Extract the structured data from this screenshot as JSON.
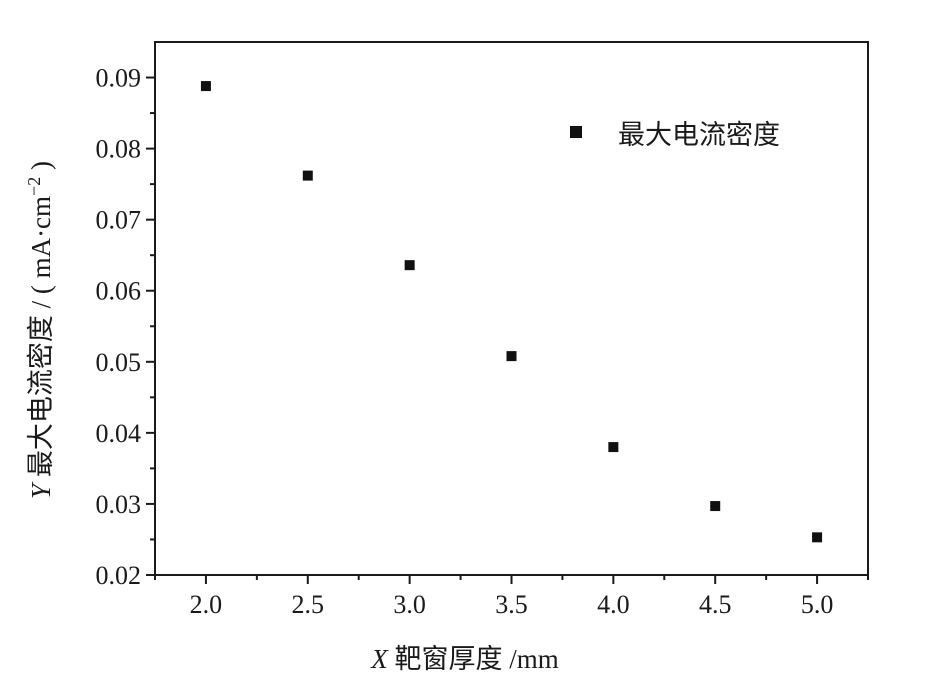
{
  "chart_data": {
    "type": "scatter",
    "x": [
      2.0,
      2.5,
      3.0,
      3.5,
      4.0,
      4.5,
      5.0
    ],
    "series": [
      {
        "name": "最大电流密度",
        "values": [
          0.0888,
          0.0762,
          0.0636,
          0.0508,
          0.038,
          0.0297,
          0.0253
        ]
      }
    ],
    "xlabel": {
      "prefix": "X",
      "text": " 靶窗厚度 /mm"
    },
    "ylabel": {
      "prefix": "Y",
      "text": " 最大电流密度 / ( mA·cm",
      "sup": "−2",
      "suffix": " )"
    },
    "xlim": [
      1.75,
      5.25
    ],
    "ylim": [
      0.02,
      0.095
    ],
    "xticks": [
      "2.0",
      "2.5",
      "3.0",
      "3.5",
      "4.0",
      "4.5",
      "5.0"
    ],
    "yticks": [
      "0.02",
      "0.03",
      "0.04",
      "0.05",
      "0.06",
      "0.07",
      "0.08",
      "0.09"
    ],
    "legend_position": "top-right",
    "grid": false,
    "marker": "square",
    "color": "#111111"
  }
}
